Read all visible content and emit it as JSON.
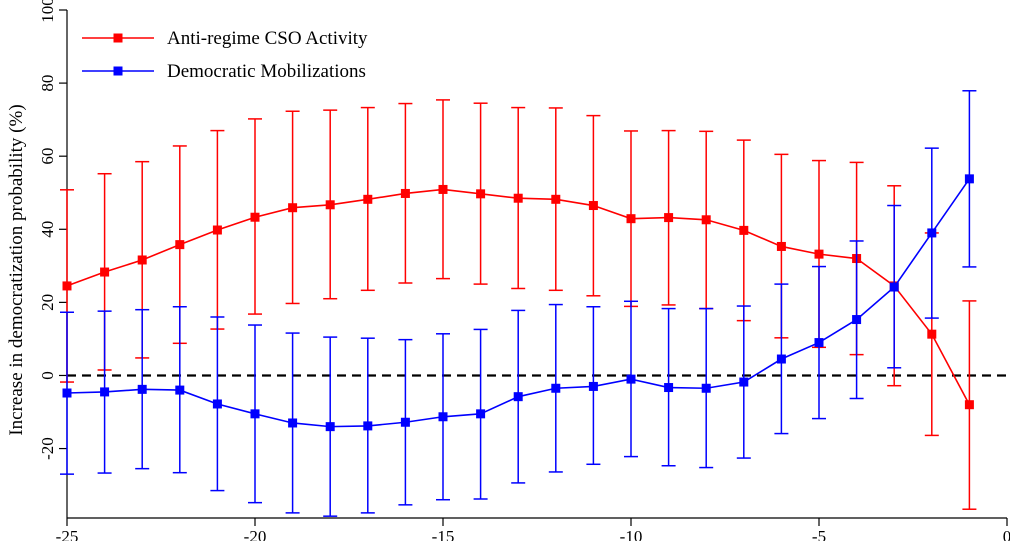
{
  "chart_data": {
    "type": "line",
    "title": "",
    "xlabel": "",
    "ylabel": "Increase in democratization probability (%)",
    "xlim": [
      -25,
      0
    ],
    "ylim": [
      -39,
      100
    ],
    "x_ticks": [
      "-25",
      "-20",
      "-15",
      "-10",
      "-5",
      "0"
    ],
    "y_ticks": [
      "-20",
      "0",
      "20",
      "40",
      "60",
      "80",
      "100"
    ],
    "grid": false,
    "legend_position": "top-left",
    "reference_line": {
      "y": 0,
      "style": "dashed",
      "color": "#000000"
    },
    "series": [
      {
        "name": "Anti-regime CSO Activity",
        "color": "#ff0000",
        "marker": "square",
        "x": [
          -25,
          -24,
          -23,
          -22,
          -21,
          -20,
          -19,
          -18,
          -17,
          -16,
          -15,
          -14,
          -13,
          -12,
          -11,
          -10,
          -9,
          -8,
          -7,
          -6,
          -5,
          -4,
          -3,
          -2,
          -1
        ],
        "y": [
          24.5,
          28.3,
          31.6,
          35.8,
          39.8,
          43.3,
          45.9,
          46.7,
          48.2,
          49.8,
          50.9,
          49.7,
          48.5,
          48.2,
          46.5,
          42.9,
          43.2,
          42.6,
          39.7,
          35.3,
          33.2,
          32.0,
          24.5,
          11.3,
          -8.0
        ],
        "ci_lower": [
          -1.8,
          1.5,
          4.8,
          8.8,
          12.7,
          16.8,
          19.7,
          21.0,
          23.3,
          25.3,
          26.5,
          25.0,
          23.8,
          23.3,
          21.8,
          18.9,
          19.3,
          18.3,
          15.0,
          10.3,
          7.7,
          5.7,
          -2.8,
          -16.4,
          -36.6
        ],
        "ci_upper": [
          50.8,
          55.2,
          58.5,
          62.8,
          67.0,
          70.2,
          72.3,
          72.6,
          73.3,
          74.4,
          75.4,
          74.5,
          73.3,
          73.2,
          71.1,
          66.9,
          67.0,
          66.8,
          64.4,
          60.5,
          58.8,
          58.3,
          51.9,
          39.0,
          20.4
        ]
      },
      {
        "name": "Democratic Mobilizations",
        "color": "#0000ff",
        "marker": "square",
        "x": [
          -25,
          -24,
          -23,
          -22,
          -21,
          -20,
          -19,
          -18,
          -17,
          -16,
          -15,
          -14,
          -13,
          -12,
          -11,
          -10,
          -9,
          -8,
          -7,
          -6,
          -5,
          -4,
          -3,
          -2,
          -1
        ],
        "y": [
          -4.8,
          -4.5,
          -3.8,
          -4.0,
          -7.8,
          -10.5,
          -13.0,
          -14.0,
          -13.8,
          -12.8,
          -11.3,
          -10.5,
          -5.8,
          -3.5,
          -3.0,
          -1.0,
          -3.3,
          -3.5,
          -1.8,
          4.5,
          9.0,
          15.3,
          24.2,
          39.0,
          53.8
        ],
        "ci_lower": [
          -27.0,
          -26.7,
          -25.5,
          -26.6,
          -31.5,
          -34.8,
          -37.6,
          -38.5,
          -37.6,
          -35.4,
          -34.0,
          -33.8,
          -29.4,
          -26.4,
          -24.3,
          -22.2,
          -24.7,
          -25.2,
          -22.6,
          -15.9,
          -11.8,
          -6.3,
          2.1,
          15.7,
          29.7
        ],
        "ci_upper": [
          17.3,
          17.6,
          18.0,
          18.8,
          16.0,
          13.8,
          11.6,
          10.5,
          10.2,
          9.8,
          11.4,
          12.6,
          17.8,
          19.4,
          18.8,
          20.3,
          18.3,
          18.3,
          19.0,
          25.0,
          29.8,
          36.8,
          46.5,
          62.2,
          77.9
        ]
      }
    ]
  }
}
